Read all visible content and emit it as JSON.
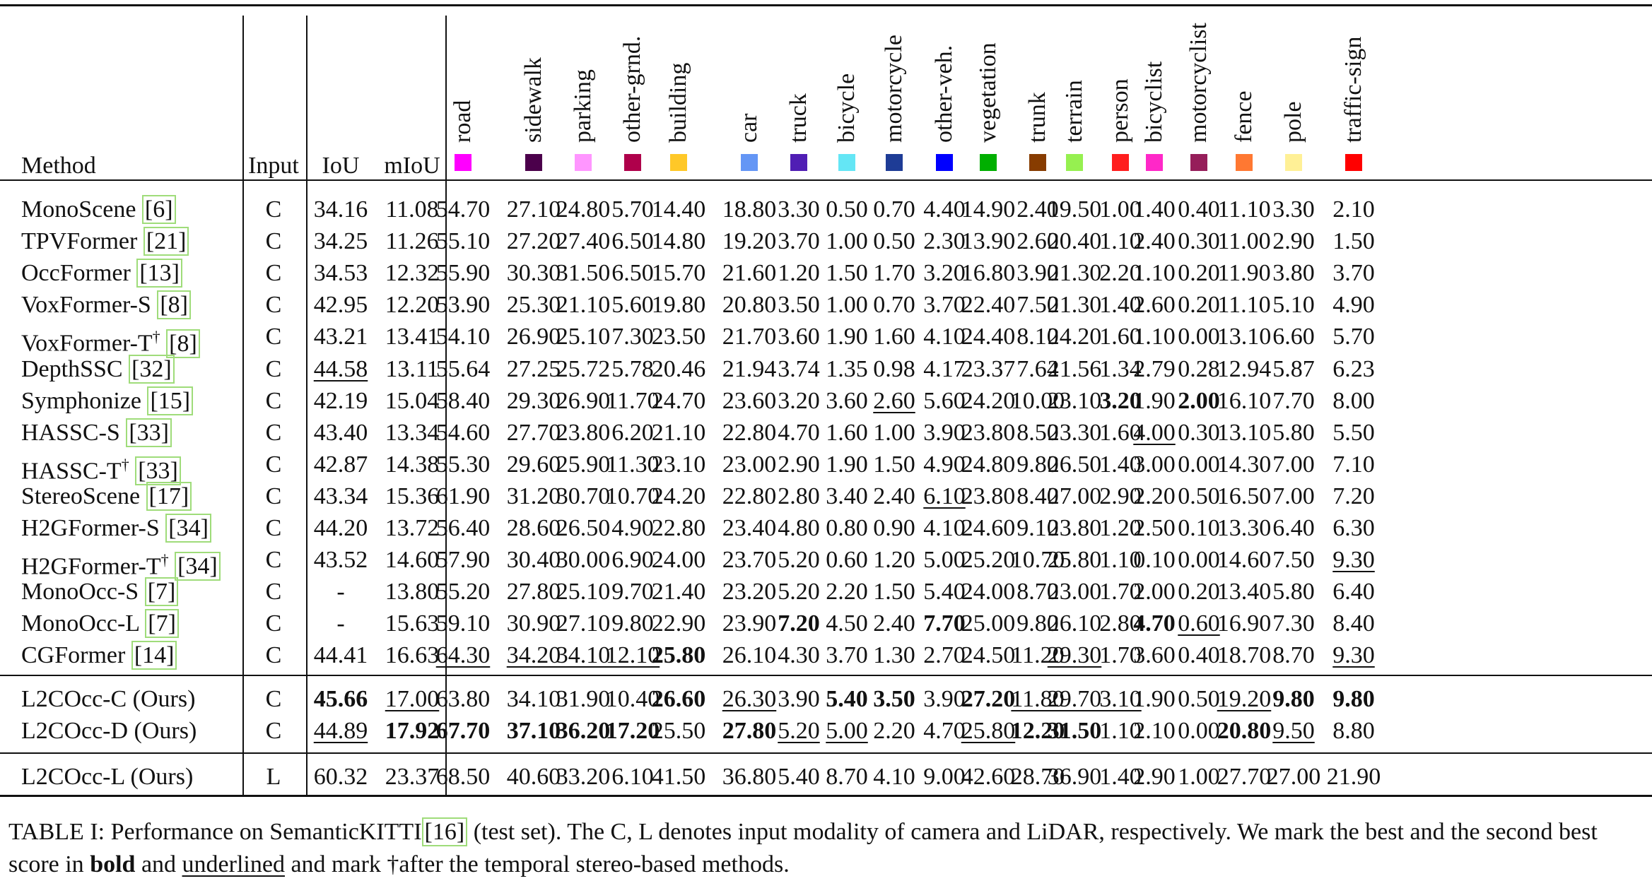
{
  "table": {
    "header": {
      "method": "Method",
      "input": "Input",
      "iou": "IoU",
      "miou": "mIoU"
    },
    "classes": [
      {
        "name": "road",
        "color": "#ff00ff"
      },
      {
        "name": "sidewalk",
        "color": "#4b004b"
      },
      {
        "name": "parking",
        "color": "#ff96ff"
      },
      {
        "name": "other-grnd.",
        "color": "#af004b"
      },
      {
        "name": "building",
        "color": "#ffc828"
      },
      {
        "name": "car",
        "color": "#6496f5"
      },
      {
        "name": "truck",
        "color": "#501eb4"
      },
      {
        "name": "bicycle",
        "color": "#64e6f5"
      },
      {
        "name": "motorcycle",
        "color": "#1e3c96"
      },
      {
        "name": "other-veh.",
        "color": "#0000ff"
      },
      {
        "name": "vegetation",
        "color": "#00af00"
      },
      {
        "name": "trunk",
        "color": "#873c00"
      },
      {
        "name": "terrain",
        "color": "#96f050"
      },
      {
        "name": "person",
        "color": "#ff1e1e"
      },
      {
        "name": "bicyclist",
        "color": "#ff28c8"
      },
      {
        "name": "motorcyclist",
        "color": "#961e5a"
      },
      {
        "name": "fence",
        "color": "#ff7832"
      },
      {
        "name": "pole",
        "color": "#fff096"
      },
      {
        "name": "traffic-sign",
        "color": "#ff0000"
      }
    ],
    "groups": [
      [
        {
          "method": "MonoScene",
          "ref": "[6]",
          "input": "C",
          "iou": "34.16",
          "miou": "11.08",
          "values": [
            "54.70",
            "27.10",
            "24.80",
            "5.70",
            "14.40",
            "18.80",
            "3.30",
            "0.50",
            "0.70",
            "4.40",
            "14.90",
            "2.40",
            "19.50",
            "1.00",
            "1.40",
            "0.40",
            "11.10",
            "3.30",
            "2.10"
          ],
          "bold": [],
          "under": []
        },
        {
          "method": "TPVFormer",
          "ref": "[21]",
          "input": "C",
          "iou": "34.25",
          "miou": "11.26",
          "values": [
            "55.10",
            "27.20",
            "27.40",
            "6.50",
            "14.80",
            "19.20",
            "3.70",
            "1.00",
            "0.50",
            "2.30",
            "13.90",
            "2.60",
            "20.40",
            "1.10",
            "2.40",
            "0.30",
            "11.00",
            "2.90",
            "1.50"
          ],
          "bold": [],
          "under": []
        },
        {
          "method": "OccFormer",
          "ref": "[13]",
          "input": "C",
          "iou": "34.53",
          "miou": "12.32",
          "values": [
            "55.90",
            "30.30",
            "31.50",
            "6.50",
            "15.70",
            "21.60",
            "1.20",
            "1.50",
            "1.70",
            "3.20",
            "16.80",
            "3.90",
            "21.30",
            "2.20",
            "1.10",
            "0.20",
            "11.90",
            "3.80",
            "3.70"
          ],
          "bold": [],
          "under": []
        },
        {
          "method": "VoxFormer-S",
          "ref": "[8]",
          "input": "C",
          "iou": "42.95",
          "miou": "12.20",
          "values": [
            "53.90",
            "25.30",
            "21.10",
            "5.60",
            "19.80",
            "20.80",
            "3.50",
            "1.00",
            "0.70",
            "3.70",
            "22.40",
            "7.50",
            "21.30",
            "1.40",
            "2.60",
            "0.20",
            "11.10",
            "5.10",
            "4.90"
          ],
          "bold": [],
          "under": []
        },
        {
          "method": "VoxFormer-T†",
          "ref": "[8]",
          "input": "C",
          "iou": "43.21",
          "miou": "13.41",
          "values": [
            "54.10",
            "26.90",
            "25.10",
            "7.30",
            "23.50",
            "21.70",
            "3.60",
            "1.90",
            "1.60",
            "4.10",
            "24.40",
            "8.10",
            "24.20",
            "1.60",
            "1.10",
            "0.00",
            "13.10",
            "6.60",
            "5.70"
          ],
          "bold": [],
          "under": []
        },
        {
          "method": "DepthSSC",
          "ref": "[32]",
          "input": "C",
          "iou": "44.58",
          "miou": "13.11",
          "values": [
            "55.64",
            "27.25",
            "25.72",
            "5.78",
            "20.46",
            "21.94",
            "3.74",
            "1.35",
            "0.98",
            "4.17",
            "23.37",
            "7.64",
            "21.56",
            "1.34",
            "2.79",
            "0.28",
            "12.94",
            "5.87",
            "6.23"
          ],
          "bold": [],
          "under": [
            "iou"
          ]
        },
        {
          "method": "Symphonize",
          "ref": "[15]",
          "input": "C",
          "iou": "42.19",
          "miou": "15.04",
          "values": [
            "58.40",
            "29.30",
            "26.90",
            "11.70",
            "24.70",
            "23.60",
            "3.20",
            "3.60",
            "2.60",
            "5.60",
            "24.20",
            "10.00",
            "23.10",
            "3.20",
            "1.90",
            "2.00",
            "16.10",
            "7.70",
            "8.00"
          ],
          "bold": [
            13,
            15
          ],
          "under": [
            8
          ]
        },
        {
          "method": "HASSC-S",
          "ref": "[33]",
          "input": "C",
          "iou": "43.40",
          "miou": "13.34",
          "values": [
            "54.60",
            "27.70",
            "23.80",
            "6.20",
            "21.10",
            "22.80",
            "4.70",
            "1.60",
            "1.00",
            "3.90",
            "23.80",
            "8.50",
            "23.30",
            "1.60",
            "4.00",
            "0.30",
            "13.10",
            "5.80",
            "5.50"
          ],
          "bold": [],
          "under": [
            14
          ]
        },
        {
          "method": "HASSC-T†",
          "ref": "[33]",
          "input": "C",
          "iou": "42.87",
          "miou": "14.38",
          "values": [
            "55.30",
            "29.60",
            "25.90",
            "11.30",
            "23.10",
            "23.00",
            "2.90",
            "1.90",
            "1.50",
            "4.90",
            "24.80",
            "9.80",
            "26.50",
            "1.40",
            "3.00",
            "0.00",
            "14.30",
            "7.00",
            "7.10"
          ],
          "bold": [],
          "under": []
        },
        {
          "method": "StereoScene",
          "ref": "[17]",
          "input": "C",
          "iou": "43.34",
          "miou": "15.36",
          "values": [
            "61.90",
            "31.20",
            "30.70",
            "10.70",
            "24.20",
            "22.80",
            "2.80",
            "3.40",
            "2.40",
            "6.10",
            "23.80",
            "8.40",
            "27.00",
            "2.90",
            "2.20",
            "0.50",
            "16.50",
            "7.00",
            "7.20"
          ],
          "bold": [],
          "under": [
            9
          ]
        },
        {
          "method": "H2GFormer-S",
          "ref": "[34]",
          "input": "C",
          "iou": "44.20",
          "miou": "13.72",
          "values": [
            "56.40",
            "28.60",
            "26.50",
            "4.90",
            "22.80",
            "23.40",
            "4.80",
            "0.80",
            "0.90",
            "4.10",
            "24.60",
            "9.10",
            "23.80",
            "1.20",
            "2.50",
            "0.10",
            "13.30",
            "6.40",
            "6.30"
          ],
          "bold": [],
          "under": []
        },
        {
          "method": "H2GFormer-T†",
          "ref": "[34]",
          "input": "C",
          "iou": "43.52",
          "miou": "14.60",
          "values": [
            "57.90",
            "30.40",
            "30.00",
            "6.90",
            "24.00",
            "23.70",
            "5.20",
            "0.60",
            "1.20",
            "5.00",
            "25.20",
            "10.70",
            "25.80",
            "1.10",
            "0.10",
            "0.00",
            "14.60",
            "7.50",
            "9.30"
          ],
          "bold": [],
          "under": [
            18
          ]
        },
        {
          "method": "MonoOcc-S",
          "ref": "[7]",
          "input": "C",
          "iou": "-",
          "miou": "13.80",
          "values": [
            "55.20",
            "27.80",
            "25.10",
            "9.70",
            "21.40",
            "23.20",
            "5.20",
            "2.20",
            "1.50",
            "5.40",
            "24.00",
            "8.70",
            "23.00",
            "1.70",
            "2.00",
            "0.20",
            "13.40",
            "5.80",
            "6.40"
          ],
          "bold": [],
          "under": []
        },
        {
          "method": "MonoOcc-L",
          "ref": "[7]",
          "input": "C",
          "iou": "-",
          "miou": "15.63",
          "values": [
            "59.10",
            "30.90",
            "27.10",
            "9.80",
            "22.90",
            "23.90",
            "7.20",
            "4.50",
            "2.40",
            "7.70",
            "25.00",
            "9.80",
            "26.10",
            "2.80",
            "4.70",
            "0.60",
            "16.90",
            "7.30",
            "8.40"
          ],
          "bold": [
            6,
            9,
            14
          ],
          "under": [
            15
          ]
        },
        {
          "method": "CGFormer",
          "ref": "[14]",
          "input": "C",
          "iou": "44.41",
          "miou": "16.63",
          "values": [
            "64.30",
            "34.20",
            "34.10",
            "12.10",
            "25.80",
            "26.10",
            "4.30",
            "3.70",
            "1.30",
            "2.70",
            "24.50",
            "11.20",
            "29.30",
            "1.70",
            "3.60",
            "0.40",
            "18.70",
            "8.70",
            "9.30"
          ],
          "bold": [
            4
          ],
          "under": [
            0,
            1,
            2,
            3,
            12,
            18
          ]
        }
      ],
      [
        {
          "method": "L2COcc-C (Ours)",
          "ref": "",
          "input": "C",
          "iou": "45.66",
          "miou": "17.00",
          "values": [
            "63.80",
            "34.10",
            "31.90",
            "10.40",
            "26.60",
            "26.30",
            "3.90",
            "5.40",
            "3.50",
            "3.90",
            "27.20",
            "11.80",
            "29.70",
            "3.10",
            "1.90",
            "0.50",
            "19.20",
            "9.80",
            "9.80"
          ],
          "bold": [
            "iou",
            4,
            7,
            8,
            10,
            17,
            18
          ],
          "under": [
            "miou",
            5,
            11,
            12,
            13,
            16
          ]
        },
        {
          "method": "L2COcc-D (Ours)",
          "ref": "",
          "input": "C",
          "iou": "44.89",
          "miou": "17.92",
          "values": [
            "67.70",
            "37.10",
            "36.20",
            "17.20",
            "25.50",
            "27.80",
            "5.20",
            "5.00",
            "2.20",
            "4.70",
            "25.80",
            "12.20",
            "31.50",
            "1.10",
            "2.10",
            "0.00",
            "20.80",
            "9.50",
            "8.80"
          ],
          "bold": [
            "miou",
            0,
            1,
            2,
            3,
            5,
            11,
            12,
            16
          ],
          "under": [
            "iou",
            6,
            7,
            10,
            17
          ]
        }
      ],
      [
        {
          "method": "L2COcc-L (Ours)",
          "ref": "",
          "input": "L",
          "iou": "60.32",
          "miou": "23.37",
          "values": [
            "68.50",
            "40.60",
            "33.20",
            "6.10",
            "41.50",
            "36.80",
            "5.40",
            "8.70",
            "4.10",
            "9.00",
            "42.60",
            "28.70",
            "36.90",
            "1.40",
            "2.90",
            "1.00",
            "27.70",
            "27.00",
            "21.90"
          ],
          "bold": [],
          "under": []
        }
      ]
    ]
  },
  "caption": {
    "prefix": "TABLE I: Performance on SemanticKITTI",
    "link": "[16]",
    "part1": " (test set). The C, L denotes input modality of camera and LiDAR, respectively. We mark the best and the second best score in ",
    "bold_word": "bold",
    "part2": " and ",
    "underlined_word": "underlined",
    "part3": " and mark †after the temporal stereo-based methods."
  }
}
